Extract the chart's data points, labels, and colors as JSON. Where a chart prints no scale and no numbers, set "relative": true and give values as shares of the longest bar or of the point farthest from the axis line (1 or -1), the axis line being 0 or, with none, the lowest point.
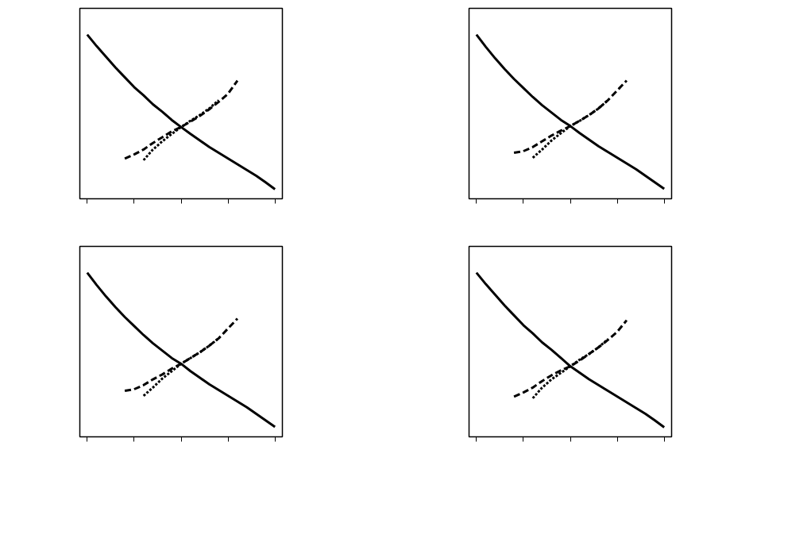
{
  "chart_data": [
    {
      "type": "line",
      "relative": true,
      "categories": [
        null,
        null,
        null,
        null,
        null,
        null,
        null,
        null,
        null,
        null,
        null,
        null,
        null,
        null,
        null,
        null,
        null,
        null,
        null,
        null,
        null
      ],
      "series": [
        {
          "color": "#000000",
          "line_style": "solid",
          "values": [
            1.0,
            0.93,
            0.865,
            0.8,
            0.74,
            0.68,
            0.63,
            0.575,
            0.53,
            0.48,
            0.437,
            0.395,
            0.355,
            0.315,
            0.28,
            0.245,
            0.21,
            0.175,
            0.14,
            0.1,
            0.058
          ]
        },
        {
          "color": "#000000",
          "line_style": "dashed",
          "values": [
            null,
            null,
            null,
            null,
            0.245,
            0.27,
            0.3,
            0.34,
            0.375,
            0.41,
            0.437,
            0.47,
            0.505,
            0.545,
            0.59,
            0.64,
            0.72,
            null,
            null,
            null,
            null
          ]
        },
        {
          "color": "#000000",
          "line_style": "dotted",
          "values": [
            null,
            null,
            null,
            null,
            null,
            null,
            0.235,
            0.3,
            0.35,
            0.395,
            0.437,
            0.475,
            0.51,
            0.55,
            0.6,
            null,
            null,
            null,
            null,
            null,
            null
          ]
        }
      ]
    },
    {
      "type": "line",
      "relative": true,
      "categories": [
        null,
        null,
        null,
        null,
        null,
        null,
        null,
        null,
        null,
        null,
        null,
        null,
        null,
        null,
        null,
        null,
        null,
        null,
        null,
        null,
        null
      ],
      "series": [
        {
          "color": "#000000",
          "line_style": "solid",
          "values": [
            1.0,
            0.925,
            0.855,
            0.79,
            0.73,
            0.675,
            0.62,
            0.57,
            0.525,
            0.48,
            0.443,
            0.4,
            0.36,
            0.32,
            0.285,
            0.25,
            0.215,
            0.18,
            0.14,
            0.1,
            0.06
          ]
        },
        {
          "color": "#000000",
          "line_style": "dashed",
          "values": [
            null,
            null,
            null,
            null,
            0.28,
            0.29,
            0.315,
            0.35,
            0.385,
            0.415,
            0.443,
            0.475,
            0.51,
            0.55,
            0.6,
            0.66,
            0.72,
            null,
            null,
            null,
            null
          ]
        },
        {
          "color": "#000000",
          "line_style": "dotted",
          "values": [
            null,
            null,
            null,
            null,
            null,
            null,
            0.25,
            0.3,
            0.355,
            0.4,
            0.443,
            0.475,
            0.51,
            0.55,
            0.6,
            null,
            null,
            null,
            null,
            null,
            null
          ]
        }
      ]
    },
    {
      "type": "line",
      "relative": true,
      "categories": [
        null,
        null,
        null,
        null,
        null,
        null,
        null,
        null,
        null,
        null,
        null,
        null,
        null,
        null,
        null,
        null,
        null,
        null,
        null,
        null,
        null
      ],
      "series": [
        {
          "color": "#000000",
          "line_style": "solid",
          "values": [
            1.0,
            0.925,
            0.855,
            0.79,
            0.73,
            0.675,
            0.62,
            0.57,
            0.525,
            0.48,
            0.445,
            0.4,
            0.36,
            0.32,
            0.285,
            0.25,
            0.215,
            0.18,
            0.14,
            0.1,
            0.06
          ]
        },
        {
          "color": "#000000",
          "line_style": "dashed",
          "values": [
            null,
            null,
            null,
            null,
            0.28,
            0.29,
            0.315,
            0.35,
            0.38,
            0.415,
            0.445,
            0.48,
            0.515,
            0.555,
            0.6,
            0.66,
            0.72,
            null,
            null,
            null,
            null
          ]
        },
        {
          "color": "#000000",
          "line_style": "dotted",
          "values": [
            null,
            null,
            null,
            null,
            null,
            null,
            0.25,
            0.3,
            0.355,
            0.4,
            0.445,
            0.48,
            0.515,
            0.555,
            0.6,
            null,
            null,
            null,
            null,
            null,
            null
          ]
        }
      ]
    },
    {
      "type": "line",
      "relative": true,
      "categories": [
        null,
        null,
        null,
        null,
        null,
        null,
        null,
        null,
        null,
        null,
        null,
        null,
        null,
        null,
        null,
        null,
        null,
        null,
        null,
        null,
        null
      ],
      "series": [
        {
          "color": "#000000",
          "line_style": "solid",
          "values": [
            1.0,
            0.93,
            0.865,
            0.8,
            0.74,
            0.68,
            0.63,
            0.575,
            0.53,
            0.48,
            0.43,
            0.39,
            0.35,
            0.315,
            0.28,
            0.245,
            0.21,
            0.175,
            0.14,
            0.1,
            0.058
          ]
        },
        {
          "color": "#000000",
          "line_style": "dashed",
          "values": [
            null,
            null,
            null,
            null,
            0.245,
            0.27,
            0.3,
            0.34,
            0.375,
            0.405,
            0.43,
            0.465,
            0.505,
            0.545,
            0.59,
            0.64,
            0.71,
            null,
            null,
            null,
            null
          ]
        },
        {
          "color": "#000000",
          "line_style": "dotted",
          "values": [
            null,
            null,
            null,
            null,
            null,
            null,
            0.235,
            0.3,
            0.35,
            0.39,
            0.43,
            0.47,
            0.505,
            0.545,
            0.595,
            null,
            null,
            null,
            null,
            null,
            null
          ]
        }
      ]
    }
  ]
}
